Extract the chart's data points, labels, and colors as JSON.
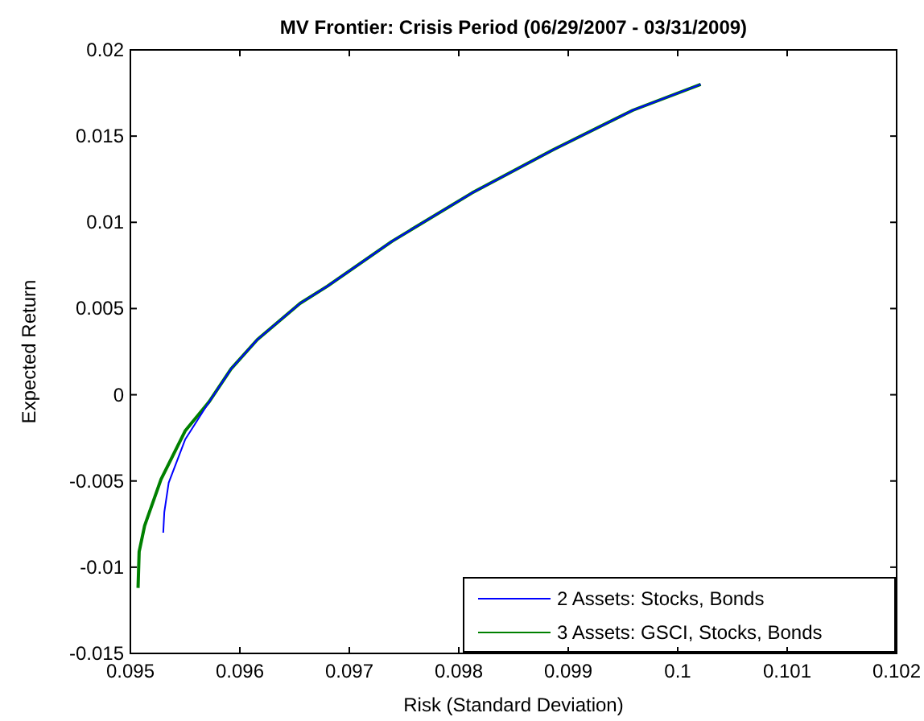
{
  "chart_data": {
    "type": "line",
    "title": "MV Frontier: Crisis Period (06/29/2007 - 03/31/2009)",
    "xlabel": "Risk (Standard Deviation)",
    "ylabel": "Expected Return",
    "xlim": [
      0.095,
      0.102
    ],
    "xticks": [
      0.095,
      0.096,
      0.097,
      0.098,
      0.099,
      0.1,
      0.101,
      0.102
    ],
    "ylim": [
      -0.015,
      0.02
    ],
    "yticks": [
      -0.015,
      -0.01,
      -0.005,
      0,
      0.005,
      0.01,
      0.015,
      0.02
    ],
    "legend": "bottom right",
    "grid": false,
    "marker": "none",
    "line_style": "solid",
    "series": [
      {
        "name": "2 Assets: Stocks, Bonds",
        "color": "#0000ff",
        "x": [
          0.0953,
          0.09531,
          0.09535,
          0.0955,
          0.0957,
          0.09592,
          0.09616,
          0.09655,
          0.0968,
          0.09739,
          0.09812,
          0.09886,
          0.09959,
          0.10021
        ],
        "values": [
          -0.008,
          -0.0068,
          -0.0051,
          -0.0026,
          -0.0006,
          0.0015,
          0.0032,
          0.0053,
          0.0063,
          0.0089,
          0.0117,
          0.0142,
          0.0165,
          0.018
        ]
      },
      {
        "name": "3 Assets: GSCI, Stocks, Bonds",
        "color": "#008000",
        "x": [
          0.09507,
          0.09508,
          0.09513,
          0.09528,
          0.0955,
          0.09572,
          0.09592,
          0.09616,
          0.09655,
          0.0968,
          0.09739,
          0.09812,
          0.09886,
          0.09959,
          0.10021
        ],
        "values": [
          -0.0112,
          -0.0091,
          -0.0076,
          -0.0049,
          -0.0021,
          -0.0004,
          0.0015,
          0.0032,
          0.0053,
          0.0063,
          0.0089,
          0.0117,
          0.0142,
          0.0165,
          0.018
        ]
      }
    ]
  }
}
